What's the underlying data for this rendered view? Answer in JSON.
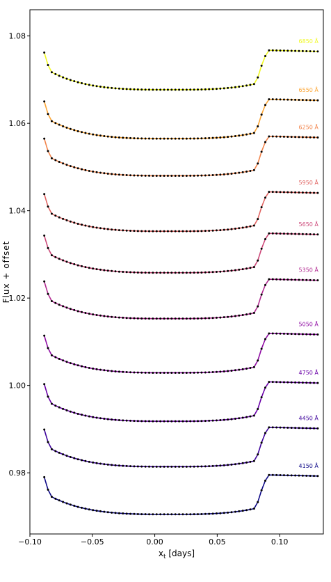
{
  "chart_data": {
    "type": "line",
    "title": "",
    "xlabel_main": "x",
    "xlabel_sub": "t",
    "xlabel_rest": " [days]",
    "ylabel": "Flux + offset",
    "xlim": [
      -0.1,
      0.135
    ],
    "ylim": [
      0.966,
      1.086
    ],
    "xticks": [
      -0.1,
      -0.05,
      0.0,
      0.05,
      0.1
    ],
    "xtick_labels": [
      "−0.10",
      "−0.05",
      "0.00",
      "0.05",
      "0.10"
    ],
    "yticks": [
      0.98,
      1.0,
      1.02,
      1.04,
      1.06,
      1.08
    ],
    "ytick_labels": [
      "0.98",
      "1.00",
      "1.02",
      "1.04",
      "1.06",
      "1.08"
    ],
    "grid": false,
    "x": [
      -0.0885,
      -0.0855,
      -0.0825,
      -0.0795,
      -0.0765,
      -0.0735,
      -0.0705,
      -0.0675,
      -0.0645,
      -0.0615,
      -0.0585,
      -0.0555,
      -0.0525,
      -0.0495,
      -0.0465,
      -0.0435,
      -0.0405,
      -0.0375,
      -0.0345,
      -0.0315,
      -0.0285,
      -0.0255,
      -0.0225,
      -0.0195,
      -0.0165,
      -0.0135,
      -0.0105,
      -0.0075,
      -0.0045,
      -0.0015,
      0.0015,
      0.0045,
      0.0075,
      0.0105,
      0.0135,
      0.0165,
      0.0195,
      0.0225,
      0.0255,
      0.0285,
      0.0315,
      0.0345,
      0.0375,
      0.0405,
      0.0435,
      0.0465,
      0.0495,
      0.0525,
      0.0555,
      0.0585,
      0.0615,
      0.0645,
      0.0675,
      0.0705,
      0.0735,
      0.0765,
      0.0795,
      0.0825,
      0.0855,
      0.0885,
      0.0915,
      0.0945,
      0.0975,
      0.1005,
      0.1035,
      0.1065,
      0.1095,
      0.1125,
      0.1155,
      0.1185,
      0.1215,
      0.1245,
      0.1275,
      0.1305
    ],
    "series": [
      {
        "name": "4150 Å",
        "color": "#0d0887",
        "values": [
          0.979,
          0.97614,
          0.9745,
          0.97407,
          0.97368,
          0.97333,
          0.97301,
          0.97271,
          0.97245,
          0.9722,
          0.97199,
          0.97179,
          0.97161,
          0.97145,
          0.97131,
          0.97119,
          0.97108,
          0.97098,
          0.97089,
          0.97082,
          0.97075,
          0.9707,
          0.97065,
          0.97061,
          0.97058,
          0.97055,
          0.97053,
          0.97052,
          0.97051,
          0.9705,
          0.9705,
          0.9705,
          0.9705,
          0.9705,
          0.9705,
          0.9705,
          0.9705,
          0.9705,
          0.9705,
          0.97051,
          0.97052,
          0.97053,
          0.97055,
          0.97058,
          0.97061,
          0.97065,
          0.9707,
          0.97075,
          0.97082,
          0.97089,
          0.97098,
          0.97108,
          0.97119,
          0.97131,
          0.97145,
          0.97161,
          0.97179,
          0.9733,
          0.976,
          0.9782,
          0.9795,
          0.9795,
          0.97948,
          0.97946,
          0.97944,
          0.97942,
          0.9794,
          0.97938,
          0.97936,
          0.97934,
          0.97932,
          0.9793,
          0.97928,
          0.97926
        ]
      },
      {
        "name": "4450 Å",
        "color": "#3e049c",
        "values": [
          0.9899,
          0.98704,
          0.9854,
          0.98497,
          0.98458,
          0.98423,
          0.98391,
          0.98361,
          0.98335,
          0.9831,
          0.98289,
          0.98269,
          0.98251,
          0.98235,
          0.98221,
          0.98209,
          0.98198,
          0.98188,
          0.98179,
          0.98172,
          0.98165,
          0.9816,
          0.98155,
          0.98151,
          0.98148,
          0.98145,
          0.98143,
          0.98142,
          0.98141,
          0.9814,
          0.9814,
          0.9814,
          0.9814,
          0.9814,
          0.9814,
          0.9814,
          0.9814,
          0.9814,
          0.9814,
          0.98141,
          0.98142,
          0.98143,
          0.98145,
          0.98148,
          0.98151,
          0.98155,
          0.9816,
          0.98165,
          0.98172,
          0.98179,
          0.98188,
          0.98198,
          0.98209,
          0.98221,
          0.98235,
          0.98251,
          0.98269,
          0.9842,
          0.9869,
          0.9891,
          0.9904,
          0.9904,
          0.99038,
          0.99036,
          0.99034,
          0.99032,
          0.9903,
          0.99028,
          0.99026,
          0.99024,
          0.99022,
          0.9902,
          0.99018,
          0.99016
        ]
      },
      {
        "name": "4750 Å",
        "color": "#6a00a8",
        "values": [
          1.0003,
          0.99744,
          0.9958,
          0.99537,
          0.99498,
          0.99463,
          0.99431,
          0.99401,
          0.99375,
          0.9935,
          0.99329,
          0.99309,
          0.99291,
          0.99275,
          0.99261,
          0.99249,
          0.99238,
          0.99228,
          0.99219,
          0.99212,
          0.99205,
          0.992,
          0.99195,
          0.99191,
          0.99188,
          0.99185,
          0.99183,
          0.99182,
          0.99181,
          0.9918,
          0.9918,
          0.9918,
          0.9918,
          0.9918,
          0.9918,
          0.9918,
          0.9918,
          0.9918,
          0.9918,
          0.99181,
          0.99182,
          0.99183,
          0.99185,
          0.99188,
          0.99191,
          0.99195,
          0.992,
          0.99205,
          0.99212,
          0.99219,
          0.99228,
          0.99238,
          0.99249,
          0.99261,
          0.99275,
          0.99291,
          0.99309,
          0.9946,
          0.9973,
          0.9995,
          1.0008,
          1.0008,
          1.00078,
          1.00076,
          1.00074,
          1.00072,
          1.0007,
          1.00068,
          1.00066,
          1.00064,
          1.00062,
          1.0006,
          1.00058,
          1.00056
        ]
      },
      {
        "name": "5050 Å",
        "color": "#900da4",
        "values": [
          1.0114,
          1.00854,
          1.0069,
          1.00647,
          1.00608,
          1.00573,
          1.00541,
          1.00511,
          1.00485,
          1.0046,
          1.00439,
          1.00419,
          1.00401,
          1.00385,
          1.00371,
          1.00359,
          1.00348,
          1.00338,
          1.00329,
          1.00322,
          1.00315,
          1.0031,
          1.00305,
          1.00301,
          1.00298,
          1.00295,
          1.00293,
          1.00292,
          1.00291,
          1.0029,
          1.0029,
          1.0029,
          1.0029,
          1.0029,
          1.0029,
          1.0029,
          1.0029,
          1.0029,
          1.0029,
          1.00291,
          1.00292,
          1.00293,
          1.00295,
          1.00298,
          1.00301,
          1.00305,
          1.0031,
          1.00315,
          1.00322,
          1.00329,
          1.00338,
          1.00348,
          1.00359,
          1.00371,
          1.00385,
          1.00401,
          1.00419,
          1.0057,
          1.0084,
          1.0106,
          1.0119,
          1.0119,
          1.01188,
          1.01186,
          1.01184,
          1.01182,
          1.0118,
          1.01178,
          1.01176,
          1.01174,
          1.01172,
          1.0117,
          1.01168,
          1.01166
        ]
      },
      {
        "name": "5350 Å",
        "color": "#b12a90",
        "values": [
          1.0238,
          1.02094,
          1.0193,
          1.01887,
          1.01848,
          1.01813,
          1.01781,
          1.01751,
          1.01725,
          1.017,
          1.01679,
          1.01659,
          1.01641,
          1.01625,
          1.01611,
          1.01599,
          1.01588,
          1.01578,
          1.01569,
          1.01562,
          1.01555,
          1.0155,
          1.01545,
          1.01541,
          1.01538,
          1.01535,
          1.01533,
          1.01532,
          1.01531,
          1.0153,
          1.0153,
          1.0153,
          1.0153,
          1.0153,
          1.0153,
          1.0153,
          1.0153,
          1.0153,
          1.0153,
          1.01531,
          1.01532,
          1.01533,
          1.01535,
          1.01538,
          1.01541,
          1.01545,
          1.0155,
          1.01555,
          1.01562,
          1.01569,
          1.01578,
          1.01588,
          1.01599,
          1.01611,
          1.01625,
          1.01641,
          1.01659,
          1.0181,
          1.0208,
          1.023,
          1.0243,
          1.0243,
          1.02428,
          1.02426,
          1.02424,
          1.02422,
          1.0242,
          1.02418,
          1.02416,
          1.02414,
          1.02412,
          1.0241,
          1.02408,
          1.02406
        ]
      },
      {
        "name": "5650 Å",
        "color": "#cc4778",
        "values": [
          1.0343,
          1.03144,
          1.0298,
          1.02937,
          1.02898,
          1.02863,
          1.02831,
          1.02801,
          1.02775,
          1.0275,
          1.02729,
          1.02709,
          1.02691,
          1.02675,
          1.02661,
          1.02649,
          1.02638,
          1.02628,
          1.02619,
          1.02612,
          1.02605,
          1.026,
          1.02595,
          1.02591,
          1.02588,
          1.02585,
          1.02583,
          1.02582,
          1.02581,
          1.0258,
          1.0258,
          1.0258,
          1.0258,
          1.0258,
          1.0258,
          1.0258,
          1.0258,
          1.0258,
          1.0258,
          1.02581,
          1.02582,
          1.02583,
          1.02585,
          1.02588,
          1.02591,
          1.02595,
          1.026,
          1.02605,
          1.02612,
          1.02619,
          1.02628,
          1.02638,
          1.02649,
          1.02661,
          1.02675,
          1.02691,
          1.02709,
          1.0286,
          1.0313,
          1.0335,
          1.0348,
          1.0348,
          1.03478,
          1.03476,
          1.03474,
          1.03472,
          1.0347,
          1.03468,
          1.03466,
          1.03464,
          1.03462,
          1.0346,
          1.03458,
          1.03456
        ]
      },
      {
        "name": "5950 Å",
        "color": "#e16462",
        "values": [
          1.0438,
          1.04094,
          1.0393,
          1.03887,
          1.03848,
          1.03813,
          1.03781,
          1.03751,
          1.03725,
          1.037,
          1.03679,
          1.03659,
          1.03641,
          1.03625,
          1.03611,
          1.03599,
          1.03588,
          1.03578,
          1.03569,
          1.03562,
          1.03555,
          1.0355,
          1.03545,
          1.03541,
          1.03538,
          1.03535,
          1.03533,
          1.03532,
          1.03531,
          1.0353,
          1.0353,
          1.0353,
          1.0353,
          1.0353,
          1.0353,
          1.0353,
          1.0353,
          1.0353,
          1.0353,
          1.03531,
          1.03532,
          1.03533,
          1.03535,
          1.03538,
          1.03541,
          1.03545,
          1.0355,
          1.03555,
          1.03562,
          1.03569,
          1.03578,
          1.03588,
          1.03599,
          1.03611,
          1.03625,
          1.03641,
          1.03659,
          1.0381,
          1.0408,
          1.043,
          1.0443,
          1.0443,
          1.04428,
          1.04426,
          1.04424,
          1.04422,
          1.0442,
          1.04418,
          1.04416,
          1.04414,
          1.04412,
          1.0441,
          1.04408,
          1.04406
        ]
      },
      {
        "name": "6250 Å",
        "color": "#f2844b",
        "values": [
          1.0565,
          1.05364,
          1.052,
          1.05157,
          1.05118,
          1.05083,
          1.05051,
          1.05021,
          1.04995,
          1.0497,
          1.04949,
          1.04929,
          1.04911,
          1.04895,
          1.04881,
          1.04869,
          1.04858,
          1.04848,
          1.04839,
          1.04832,
          1.04825,
          1.0482,
          1.04815,
          1.04811,
          1.04808,
          1.04805,
          1.04803,
          1.04802,
          1.04801,
          1.048,
          1.048,
          1.048,
          1.048,
          1.048,
          1.048,
          1.048,
          1.048,
          1.048,
          1.048,
          1.04801,
          1.04802,
          1.04803,
          1.04805,
          1.04808,
          1.04811,
          1.04815,
          1.0482,
          1.04825,
          1.04832,
          1.04839,
          1.04848,
          1.04858,
          1.04869,
          1.04881,
          1.04895,
          1.04911,
          1.04929,
          1.0508,
          1.0535,
          1.0557,
          1.057,
          1.057,
          1.05698,
          1.05696,
          1.05694,
          1.05692,
          1.0569,
          1.05688,
          1.05686,
          1.05684,
          1.05682,
          1.0568,
          1.05678,
          1.05676
        ]
      },
      {
        "name": "6550 Å",
        "color": "#fca636",
        "values": [
          1.065,
          1.06214,
          1.0605,
          1.06007,
          1.05968,
          1.05933,
          1.05901,
          1.05871,
          1.05845,
          1.0582,
          1.05799,
          1.05779,
          1.05761,
          1.05745,
          1.05731,
          1.05719,
          1.05708,
          1.05698,
          1.05689,
          1.05682,
          1.05675,
          1.0567,
          1.05665,
          1.05661,
          1.05658,
          1.05655,
          1.05653,
          1.05652,
          1.05651,
          1.0565,
          1.0565,
          1.0565,
          1.0565,
          1.0565,
          1.0565,
          1.0565,
          1.0565,
          1.0565,
          1.0565,
          1.05651,
          1.05652,
          1.05653,
          1.05655,
          1.05658,
          1.05661,
          1.05665,
          1.0567,
          1.05675,
          1.05682,
          1.05689,
          1.05698,
          1.05708,
          1.05719,
          1.05731,
          1.05745,
          1.05761,
          1.05779,
          1.0593,
          1.062,
          1.0642,
          1.0655,
          1.0655,
          1.06548,
          1.06546,
          1.06544,
          1.06542,
          1.0654,
          1.06538,
          1.06536,
          1.06534,
          1.06532,
          1.0653,
          1.06528,
          1.06526
        ]
      },
      {
        "name": "6850 Å",
        "color": "#f0f921",
        "values": [
          1.0762,
          1.07334,
          1.0717,
          1.07127,
          1.07088,
          1.07053,
          1.07021,
          1.06991,
          1.06965,
          1.0694,
          1.06919,
          1.06899,
          1.06881,
          1.06865,
          1.06851,
          1.06839,
          1.06828,
          1.06818,
          1.06809,
          1.06802,
          1.06795,
          1.0679,
          1.06785,
          1.06781,
          1.06778,
          1.06775,
          1.06773,
          1.06772,
          1.06771,
          1.0677,
          1.0677,
          1.0677,
          1.0677,
          1.0677,
          1.0677,
          1.0677,
          1.0677,
          1.0677,
          1.0677,
          1.06771,
          1.06772,
          1.06773,
          1.06775,
          1.06778,
          1.06781,
          1.06785,
          1.0679,
          1.06795,
          1.06802,
          1.06809,
          1.06818,
          1.06828,
          1.06839,
          1.06851,
          1.06865,
          1.06881,
          1.06899,
          1.0705,
          1.0732,
          1.0754,
          1.0767,
          1.0767,
          1.07668,
          1.07666,
          1.07664,
          1.07662,
          1.0766,
          1.07658,
          1.07656,
          1.07654,
          1.07652,
          1.0765,
          1.07648,
          1.07646
        ]
      }
    ],
    "marker_color": "#000000"
  }
}
